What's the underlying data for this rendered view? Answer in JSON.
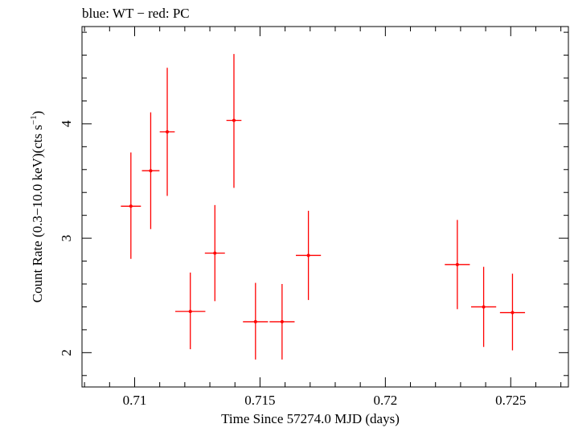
{
  "chart_data": {
    "type": "scatter",
    "title": "blue: WT − red: PC",
    "xlabel": "Time Since 57274.0 MJD (days)",
    "ylabel_main": "Count Rate (0.3−10.0 keV)(cts s",
    "ylabel_sup": "−1",
    "ylabel_tail": ")",
    "xlim": [
      0.7079,
      0.7273
    ],
    "ylim": [
      1.7,
      4.85
    ],
    "x_ticks": [
      0.71,
      0.715,
      0.72,
      0.725
    ],
    "x_tick_labels": [
      "0.71",
      "0.715",
      "0.72",
      "0.725"
    ],
    "y_ticks": [
      2,
      3,
      4
    ],
    "y_tick_labels": [
      "2",
      "3",
      "4"
    ],
    "grid": false,
    "series": [
      {
        "color": "#ff0000",
        "points": [
          {
            "x": 0.70985,
            "y": 3.28,
            "xerr": 0.0004,
            "ylo": 2.82,
            "yhi": 3.75
          },
          {
            "x": 0.71064,
            "y": 3.59,
            "xerr": 0.00035,
            "ylo": 3.08,
            "yhi": 4.1
          },
          {
            "x": 0.7113,
            "y": 3.93,
            "xerr": 0.0003,
            "ylo": 3.37,
            "yhi": 4.49
          },
          {
            "x": 0.71222,
            "y": 2.36,
            "xerr": 0.0006,
            "ylo": 2.03,
            "yhi": 2.7
          },
          {
            "x": 0.7132,
            "y": 2.87,
            "xerr": 0.0004,
            "ylo": 2.45,
            "yhi": 3.29
          },
          {
            "x": 0.71396,
            "y": 4.03,
            "xerr": 0.0003,
            "ylo": 3.44,
            "yhi": 4.61
          },
          {
            "x": 0.71482,
            "y": 2.27,
            "xerr": 0.0005,
            "ylo": 1.94,
            "yhi": 2.61
          },
          {
            "x": 0.71588,
            "y": 2.27,
            "xerr": 0.0005,
            "ylo": 1.94,
            "yhi": 2.6
          },
          {
            "x": 0.71693,
            "y": 2.85,
            "xerr": 0.0005,
            "ylo": 2.46,
            "yhi": 3.24
          },
          {
            "x": 0.72287,
            "y": 2.77,
            "xerr": 0.0005,
            "ylo": 2.38,
            "yhi": 3.16
          },
          {
            "x": 0.72392,
            "y": 2.4,
            "xerr": 0.0005,
            "ylo": 2.05,
            "yhi": 2.75
          },
          {
            "x": 0.72507,
            "y": 2.35,
            "xerr": 0.0005,
            "ylo": 2.02,
            "yhi": 2.69
          }
        ]
      }
    ]
  }
}
